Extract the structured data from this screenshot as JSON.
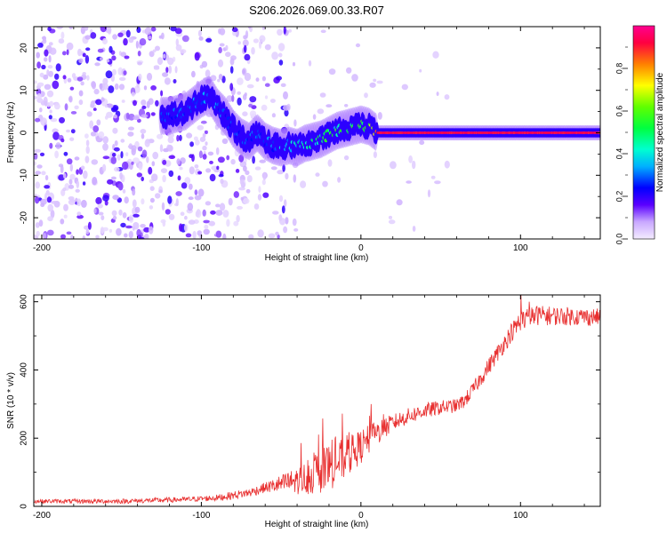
{
  "title": "S206.2026.069.00.33.R07",
  "colors": {
    "background": "#ffffff",
    "axis": "#000000",
    "snr_line": "#e83030",
    "speckle_light": "#d9c8f7",
    "speckle_dark": "#4a10d8"
  },
  "chart_data": [
    {
      "type": "heatmap",
      "title": "S206.2026.069.00.33.R07",
      "xlabel": "Height of straight line (km)",
      "ylabel": "Frequency (Hz)",
      "xlim": [
        -205,
        150
      ],
      "ylim": [
        -25,
        25
      ],
      "xticks": [
        -200,
        -100,
        0,
        100
      ],
      "xtick_labels": [
        "-200",
        "-100",
        "0",
        "100"
      ],
      "yticks": [
        -20,
        -10,
        0,
        10,
        20
      ],
      "ytick_labels": [
        "-20",
        "-10",
        "0",
        "10",
        "20"
      ],
      "colorbar": {
        "label": "Normalized spectral amplitude",
        "range": [
          0,
          1
        ],
        "ticks": [
          0.0,
          0.2,
          0.4,
          0.6,
          0.8
        ],
        "tick_labels": [
          "0.0",
          "0.2",
          "0.4",
          "0.6",
          "0.8"
        ]
      },
      "ridge": {
        "description_points_km_hz": [
          [
            -120,
            4
          ],
          [
            -110,
            5
          ],
          [
            -100,
            8
          ],
          [
            -95,
            9
          ],
          [
            -90,
            6
          ],
          [
            -85,
            4
          ],
          [
            -80,
            1
          ],
          [
            -75,
            -1
          ],
          [
            -70,
            -2
          ],
          [
            -65,
            0
          ],
          [
            -60,
            -2
          ],
          [
            -55,
            -3
          ],
          [
            -50,
            -3.5
          ],
          [
            -45,
            -3
          ],
          [
            -40,
            -3.5
          ],
          [
            -35,
            -2.5
          ],
          [
            -30,
            -2
          ],
          [
            -25,
            -1.5
          ],
          [
            -20,
            -0.5
          ],
          [
            -15,
            0.5
          ],
          [
            -10,
            1
          ],
          [
            -5,
            1.5
          ],
          [
            0,
            2
          ],
          [
            5,
            1.5
          ],
          [
            10,
            0
          ],
          [
            150,
            0
          ]
        ],
        "amplitude_points_km": [
          [
            -120,
            0.3
          ],
          [
            -100,
            0.35
          ],
          [
            -80,
            0.3
          ],
          [
            -60,
            0.3
          ],
          [
            -40,
            0.45
          ],
          [
            -20,
            0.55
          ],
          [
            0,
            0.6
          ],
          [
            10,
            0.9
          ],
          [
            150,
            0.95
          ]
        ]
      }
    },
    {
      "type": "line",
      "xlabel": "Height of straight line (km)",
      "ylabel": "SNR (10 * v/v)",
      "xlim": [
        -205,
        150
      ],
      "ylim": [
        0,
        620
      ],
      "xticks": [
        -200,
        -100,
        0,
        100
      ],
      "xtick_labels": [
        "-200",
        "-100",
        "0",
        "100"
      ],
      "yticks": [
        0,
        200,
        400,
        600
      ],
      "ytick_labels": [
        "0",
        "200",
        "400",
        "600"
      ],
      "series": [
        {
          "name": "SNR",
          "envelope_x": [
            -205,
            -150,
            -110,
            -90,
            -70,
            -60,
            -40,
            -30,
            -20,
            -10,
            0,
            10,
            20,
            30,
            40,
            50,
            60,
            65,
            70,
            80,
            90,
            95,
            100,
            110,
            150
          ],
          "envelope_y": [
            15,
            15,
            20,
            25,
            40,
            55,
            75,
            90,
            115,
            140,
            175,
            215,
            245,
            265,
            280,
            290,
            295,
            310,
            340,
            410,
            480,
            515,
            545,
            560,
            555
          ],
          "noise_x": [
            -205,
            -100,
            -60,
            -40,
            -20,
            0,
            20,
            60,
            100,
            150
          ],
          "noise_amp": [
            6,
            8,
            15,
            40,
            70,
            50,
            25,
            20,
            30,
            25
          ]
        }
      ]
    }
  ]
}
